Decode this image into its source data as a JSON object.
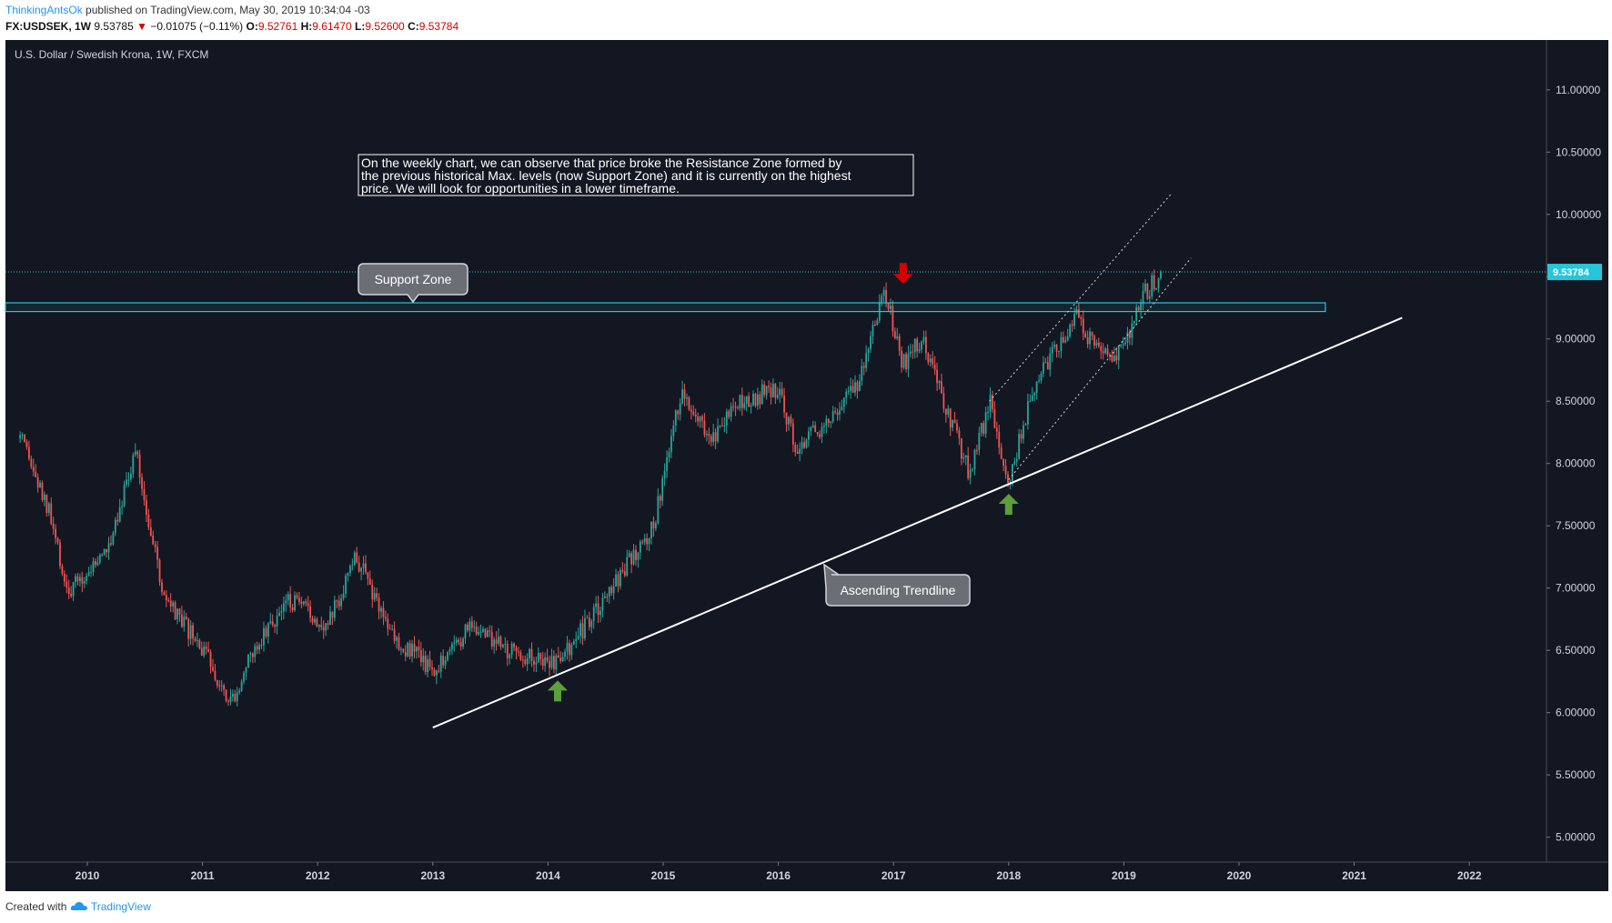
{
  "header": {
    "author": "ThinkingAntsOk",
    "published": "published on TradingView.com, May 30, 2019 10:34:04 -03",
    "symbol": "FX:USDSEK, 1W",
    "last": "9.53785",
    "change_arrow": "▼",
    "change": "−0.01075 (−0.11%)",
    "o_label": "O:",
    "o_value": "9.52761",
    "h_label": "H:",
    "h_value": "9.61470",
    "l_label": "L:",
    "l_value": "9.52600",
    "c_label": "C:",
    "c_value": "9.53784"
  },
  "footer": {
    "created_with": "Created with",
    "brand": "TradingView",
    "logo_icon": "tradingview-cloud-icon"
  },
  "chart_data": {
    "type": "candlestick",
    "title": "U.S. Dollar / Swedish Krona, 1W, FXCM",
    "x_ticks": [
      "2010",
      "2011",
      "2012",
      "2013",
      "2014",
      "2015",
      "2016",
      "2017",
      "2018",
      "2019",
      "2020",
      "2021",
      "2022"
    ],
    "y_ticks": [
      "11.00000",
      "10.50000",
      "10.00000",
      "9.50000",
      "9.00000",
      "8.50000",
      "8.00000",
      "7.50000",
      "7.00000",
      "6.50000",
      "6.00000",
      "5.50000",
      "5.00000"
    ],
    "ylim": [
      4.8,
      11.4
    ],
    "xlim": [
      "2009-06",
      "2022-11"
    ],
    "last_price_label": "9.53784",
    "last_price": 9.53784,
    "colors": {
      "background": "#131722",
      "up": "#26a69a",
      "down": "#ef5350",
      "zone": "#26c6da",
      "trendline": "#ffffff",
      "arrow_down": "#d50000",
      "arrow_up": "#5d9f3b",
      "callout_bg": "#6b6e75"
    },
    "price_path": [
      [
        "2009-06",
        8.2
      ],
      [
        "2009-09",
        7.6
      ],
      [
        "2009-11",
        6.95
      ],
      [
        "2010-03",
        7.3
      ],
      [
        "2010-06",
        8.1
      ],
      [
        "2010-09",
        6.9
      ],
      [
        "2011-01",
        6.5
      ],
      [
        "2011-04",
        6.1
      ],
      [
        "2011-07",
        6.6
      ],
      [
        "2011-10",
        6.9
      ],
      [
        "2012-02",
        6.7
      ],
      [
        "2012-05",
        7.25
      ],
      [
        "2012-09",
        6.6
      ],
      [
        "2013-01",
        6.35
      ],
      [
        "2013-05",
        6.7
      ],
      [
        "2013-09",
        6.5
      ],
      [
        "2014-02",
        6.4
      ],
      [
        "2014-06",
        6.8
      ],
      [
        "2014-12",
        7.5
      ],
      [
        "2015-03",
        8.6
      ],
      [
        "2015-06",
        8.2
      ],
      [
        "2015-09",
        8.5
      ],
      [
        "2016-01",
        8.6
      ],
      [
        "2016-03",
        8.1
      ],
      [
        "2016-06",
        8.35
      ],
      [
        "2016-09",
        8.6
      ],
      [
        "2016-12",
        9.4
      ],
      [
        "2017-02",
        8.8
      ],
      [
        "2017-04",
        9.0
      ],
      [
        "2017-09",
        7.9
      ],
      [
        "2017-11",
        8.5
      ],
      [
        "2018-01",
        7.87
      ],
      [
        "2018-04",
        8.7
      ],
      [
        "2018-08",
        9.2
      ],
      [
        "2018-10",
        8.9
      ],
      [
        "2019-01",
        8.9
      ],
      [
        "2019-03",
        9.35
      ],
      [
        "2019-05",
        9.54
      ]
    ],
    "annotations": {
      "note": "On the weekly chart, we can observe that price broke the Resistance Zone formed by the previous historical Max. levels (now Support Zone) and it is currently on the highest price. We will look for opportunities in a lower timeframe.",
      "support_label": "Support Zone",
      "trend_label": "Ascending Trendline",
      "support_zone": [
        9.22,
        9.29
      ],
      "trendline": [
        [
          "2013-01",
          5.88
        ],
        [
          "2021-06",
          9.17
        ]
      ],
      "channel_upper": [
        [
          "2017-11",
          8.5
        ],
        [
          "2019-06",
          10.17
        ]
      ],
      "channel_lower": [
        [
          "2018-01",
          7.87
        ],
        [
          "2019-08",
          9.65
        ]
      ],
      "arrow_down": [
        "2017-02",
        9.45
      ],
      "arrows_up": [
        [
          "2014-02",
          6.25
        ],
        [
          "2018-01",
          7.75
        ]
      ]
    }
  }
}
